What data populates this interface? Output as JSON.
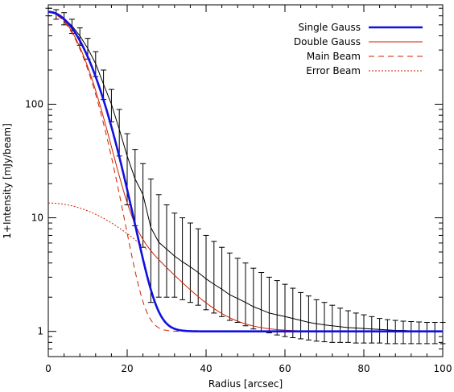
{
  "chart_data": {
    "type": "line",
    "title": "",
    "xlabel": "Radius [arcsec]",
    "ylabel": "1+Intensity [mJy/beam]",
    "xlim": [
      0,
      100
    ],
    "ylim": [
      0.6,
      750
    ],
    "yscale": "log",
    "xticks": [
      0,
      20,
      40,
      60,
      80,
      100
    ],
    "xtick_labels": [
      "0",
      "20",
      "40",
      "60",
      "80",
      "100"
    ],
    "yticks": [
      1,
      10,
      100
    ],
    "ytick_labels": [
      "1",
      "10",
      "100"
    ],
    "grid": false,
    "legend_position": "top-right",
    "series": [
      {
        "name": "Single Gauss",
        "color": "#1010e0",
        "style": "solid",
        "width": "thick",
        "model": "gauss",
        "amplitude": 650,
        "fwhm": 17.4,
        "offset": 1.0
      },
      {
        "name": "Double Gauss",
        "color": "#cc2200",
        "style": "solid",
        "width": "thin",
        "model": "double_gauss",
        "components": [
          {
            "amplitude": 640,
            "fwhm": 15.5
          },
          {
            "amplitude": 12.5,
            "fwhm": 40
          }
        ],
        "offset": 1.0
      },
      {
        "name": "Main Beam",
        "color": "#cc2200",
        "style": "dashed",
        "width": "thin",
        "model": "gauss",
        "amplitude": 640,
        "fwhm": 15.5,
        "offset": 1.0
      },
      {
        "name": "Error Beam",
        "color": "#cc2200",
        "style": "dotted",
        "width": "thin",
        "model": "gauss",
        "amplitude": 12.5,
        "fwhm": 40,
        "offset": 1.0,
        "x_range": [
          0,
          25
        ]
      }
    ],
    "error_bars": {
      "color": "#000000",
      "x": [
        0,
        2,
        4,
        6,
        8,
        10,
        12,
        14,
        16,
        18,
        20,
        22,
        24,
        26,
        28,
        30,
        32,
        34,
        36,
        38,
        40,
        42,
        44,
        46,
        48,
        50,
        52,
        54,
        56,
        58,
        60,
        62,
        64,
        66,
        68,
        70,
        72,
        74,
        76,
        78,
        80,
        82,
        84,
        86,
        88,
        90,
        92,
        94,
        96,
        98,
        100
      ],
      "y": [
        650,
        620,
        570,
        490,
        400,
        310,
        228,
        150,
        100,
        60,
        35,
        22,
        16,
        8.2,
        6.1,
        5.3,
        4.6,
        4.1,
        3.7,
        3.3,
        2.9,
        2.6,
        2.35,
        2.1,
        1.95,
        1.8,
        1.65,
        1.55,
        1.45,
        1.4,
        1.35,
        1.3,
        1.25,
        1.2,
        1.17,
        1.14,
        1.12,
        1.1,
        1.08,
        1.07,
        1.06,
        1.05,
        1.04,
        1.03,
        1.02,
        1.02,
        1.01,
        1.01,
        1.0,
        1.0,
        1.0
      ],
      "y_low": [
        600,
        560,
        500,
        420,
        330,
        250,
        175,
        110,
        70,
        35,
        13,
        8.5,
        5.5,
        1.8,
        2.0,
        2.0,
        2.0,
        1.9,
        1.8,
        1.7,
        1.55,
        1.45,
        1.35,
        1.25,
        1.2,
        1.12,
        1.05,
        1.0,
        0.97,
        0.93,
        0.9,
        0.88,
        0.86,
        0.84,
        0.82,
        0.81,
        0.8,
        0.8,
        0.8,
        0.79,
        0.79,
        0.79,
        0.79,
        0.78,
        0.78,
        0.78,
        0.78,
        0.78,
        0.78,
        0.78,
        0.78
      ],
      "y_high": [
        700,
        680,
        640,
        560,
        470,
        380,
        290,
        200,
        135,
        90,
        55,
        40,
        30,
        22,
        16,
        13,
        11,
        10,
        9,
        8,
        7,
        6.2,
        5.5,
        4.9,
        4.4,
        4.0,
        3.6,
        3.3,
        3.0,
        2.8,
        2.6,
        2.4,
        2.2,
        2.05,
        1.9,
        1.8,
        1.7,
        1.6,
        1.52,
        1.45,
        1.4,
        1.35,
        1.3,
        1.27,
        1.25,
        1.23,
        1.22,
        1.21,
        1.2,
        1.2,
        1.2
      ]
    }
  }
}
